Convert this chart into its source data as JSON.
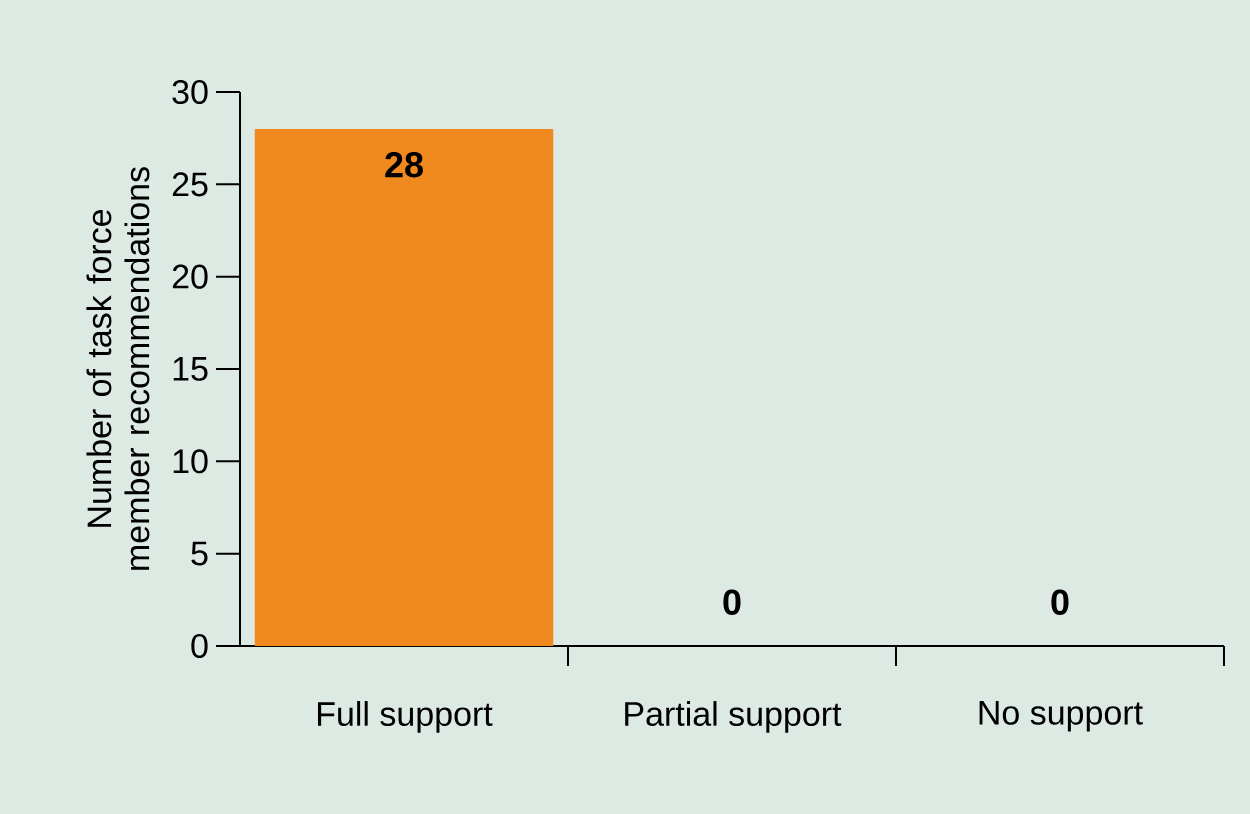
{
  "chart_data": {
    "type": "bar",
    "ylabel": "Number of task force member recommendations",
    "categories": [
      "Full support",
      "Partial support",
      "No support"
    ],
    "values": [
      28,
      0,
      0
    ],
    "color": "#f08a1e",
    "data_labels": true,
    "ylim": [
      0,
      30
    ],
    "yticks": [
      0,
      5,
      10,
      15,
      20,
      25,
      30
    ]
  }
}
